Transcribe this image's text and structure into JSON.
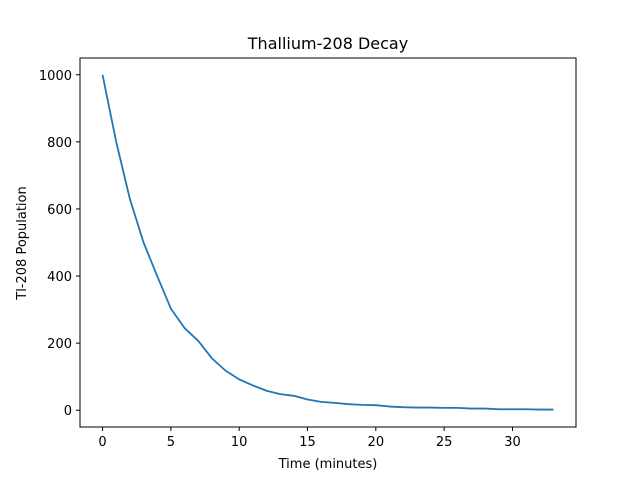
{
  "chart_data": {
    "type": "line",
    "title": "Thallium-208 Decay",
    "xlabel": "Time (minutes)",
    "ylabel": "Tl-208 Population",
    "xlim": [
      -1.65,
      34.65
    ],
    "ylim": [
      -50,
      1050
    ],
    "xticks": [
      0,
      5,
      10,
      15,
      20,
      25,
      30
    ],
    "yticks": [
      0,
      200,
      400,
      600,
      800,
      1000
    ],
    "grid": false,
    "series": [
      {
        "color": "#1f77b4",
        "x": [
          0,
          1,
          2,
          3,
          4,
          5,
          6,
          7,
          8,
          9,
          10,
          11,
          12,
          13,
          14,
          15,
          16,
          17,
          18,
          19,
          20,
          21,
          22,
          23,
          24,
          25,
          26,
          27,
          28,
          29,
          30,
          31,
          32,
          33
        ],
        "y": [
          1000,
          800,
          630,
          500,
          400,
          303,
          245,
          207,
          155,
          118,
          92,
          74,
          58,
          48,
          43,
          32,
          25,
          22,
          18,
          16,
          15,
          11,
          9,
          8,
          8,
          7,
          7,
          5,
          5,
          3,
          3,
          3,
          2,
          2
        ]
      }
    ]
  }
}
